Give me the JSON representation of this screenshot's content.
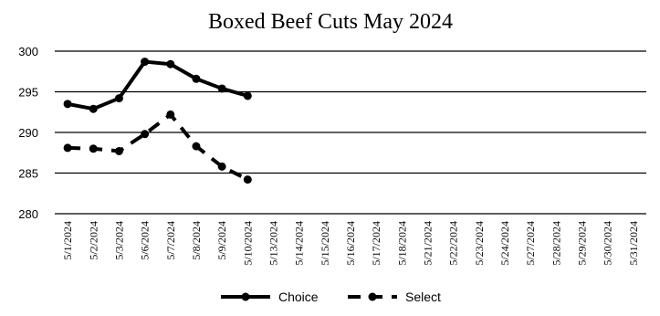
{
  "chart_data": {
    "type": "line",
    "title": "Boxed Beef Cuts May 2024",
    "xlabel": "",
    "ylabel": "",
    "ylim": [
      280,
      300
    ],
    "yticks": [
      280,
      285,
      290,
      295,
      300
    ],
    "grid": true,
    "legend_position": "bottom",
    "categories": [
      "5/1/2024",
      "5/2/2024",
      "5/3/2024",
      "5/6/2024",
      "5/7/2024",
      "5/8/2024",
      "5/9/2024",
      "5/10/2024",
      "5/13/2024",
      "5/14/2024",
      "5/15/2024",
      "5/16/2024",
      "5/17/2024",
      "5/18/2024",
      "5/21/2024",
      "5/22/2024",
      "5/23/2024",
      "5/24/2024",
      "5/27/2024",
      "5/28/2024",
      "5/29/2024",
      "5/30/2024",
      "5/31/2024"
    ],
    "series": [
      {
        "name": "Choice",
        "dash": "solid",
        "color": "#000000",
        "values": [
          293.5,
          292.9,
          294.2,
          298.7,
          298.4,
          296.6,
          295.4,
          294.5,
          null,
          null,
          null,
          null,
          null,
          null,
          null,
          null,
          null,
          null,
          null,
          null,
          null,
          null,
          null
        ]
      },
      {
        "name": "Select",
        "dash": "dashed",
        "color": "#000000",
        "values": [
          288.1,
          288.0,
          287.7,
          289.8,
          292.2,
          288.3,
          285.8,
          284.2,
          null,
          null,
          null,
          null,
          null,
          null,
          null,
          null,
          null,
          null,
          null,
          null,
          null,
          null,
          null
        ]
      }
    ]
  }
}
